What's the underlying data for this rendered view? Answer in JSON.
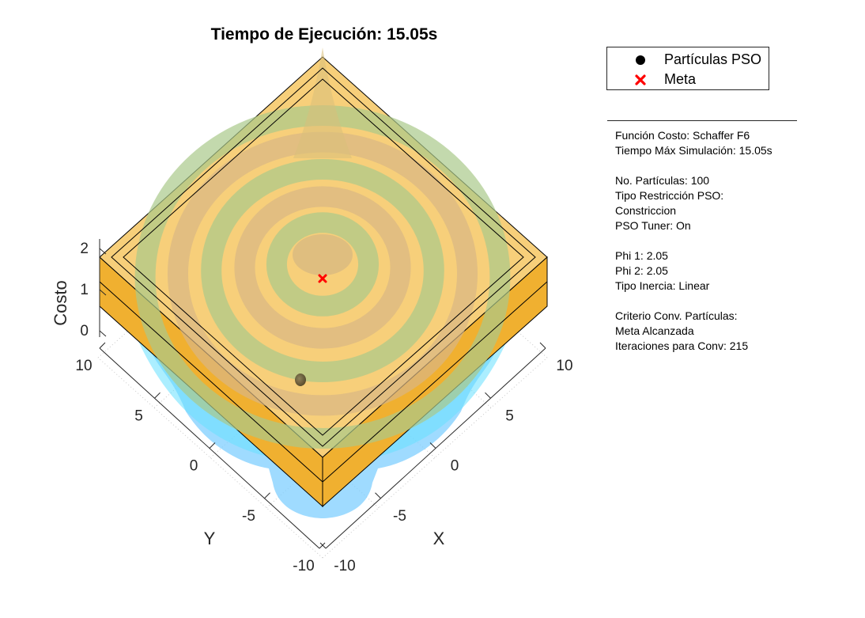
{
  "chart_data": {
    "type": "surface",
    "title": "Tiempo de Ejecución: 15.05s",
    "xlabel": "X",
    "ylabel": "Y",
    "zlabel": "Costo",
    "xlim": [
      -10,
      10
    ],
    "ylim": [
      -10,
      10
    ],
    "zlim": [
      0,
      2
    ],
    "x_ticks": [
      -10,
      -5,
      0,
      5,
      10
    ],
    "y_ticks": [
      -10,
      -5,
      0,
      5,
      10
    ],
    "z_ticks": [
      0,
      1,
      2
    ],
    "grid": true,
    "legend_placement": "top-right-outside",
    "surface": {
      "function": "Schaffer F6",
      "colormap": "cool"
    },
    "series": [
      {
        "name": "Partículas PSO",
        "marker": "circle",
        "color": "#000000",
        "points": [
          {
            "x": -2.3,
            "y": -3.0,
            "z": 1.9
          }
        ]
      },
      {
        "name": "Meta",
        "marker": "x",
        "color": "#ff0000",
        "points": [
          {
            "x": 0,
            "y": 0,
            "z": 2
          }
        ]
      }
    ],
    "boundary_box": {
      "color": "#f5b041",
      "x": [
        -10,
        10
      ],
      "y": [
        -10,
        10
      ],
      "z": [
        1,
        2
      ]
    }
  },
  "legend": {
    "items": [
      {
        "label": "Partículas PSO",
        "symbol": "●"
      },
      {
        "label": "Meta",
        "symbol": "✖"
      }
    ]
  },
  "info_panel": {
    "lines": [
      "Función Costo: Schaffer F6",
      "Tiempo Máx Simulación: 15.05s",
      "",
      "No. Partículas: 100",
      "Tipo Restricción PSO:",
      "Constriccion",
      "PSO Tuner: On",
      "",
      "Phi 1: 2.05",
      "Phi 2: 2.05",
      "Tipo Inercia: Linear",
      "",
      "Criterio Conv. Partículas:",
      "Meta Alcanzada",
      "Iteraciones para Conv: 215"
    ]
  }
}
